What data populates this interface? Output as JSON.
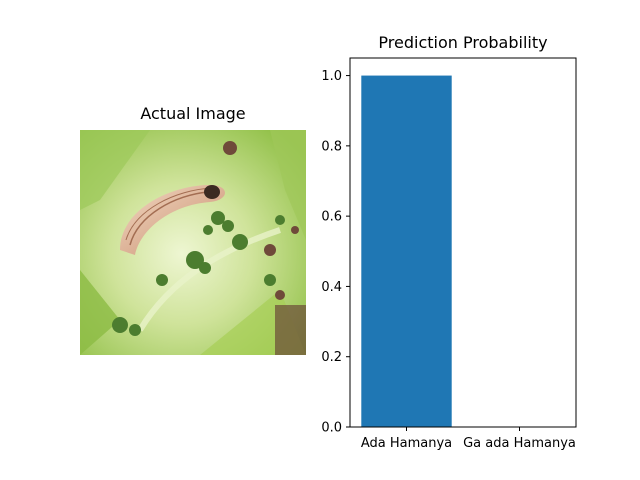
{
  "image_panel": {
    "title": "Actual Image",
    "subject": "caterpillar-on-leaf-photo"
  },
  "chart_data": {
    "type": "bar",
    "title": "Prediction Probability",
    "categories": [
      "Ada Hamanya",
      "Ga ada Hamanya"
    ],
    "values": [
      1.0,
      0.0
    ],
    "ylim": [
      0,
      1.05
    ],
    "yticks": [
      "0.0",
      "0.2",
      "0.4",
      "0.6",
      "0.8",
      "1.0"
    ],
    "bar_color": "#1f77b4",
    "grid": false
  }
}
